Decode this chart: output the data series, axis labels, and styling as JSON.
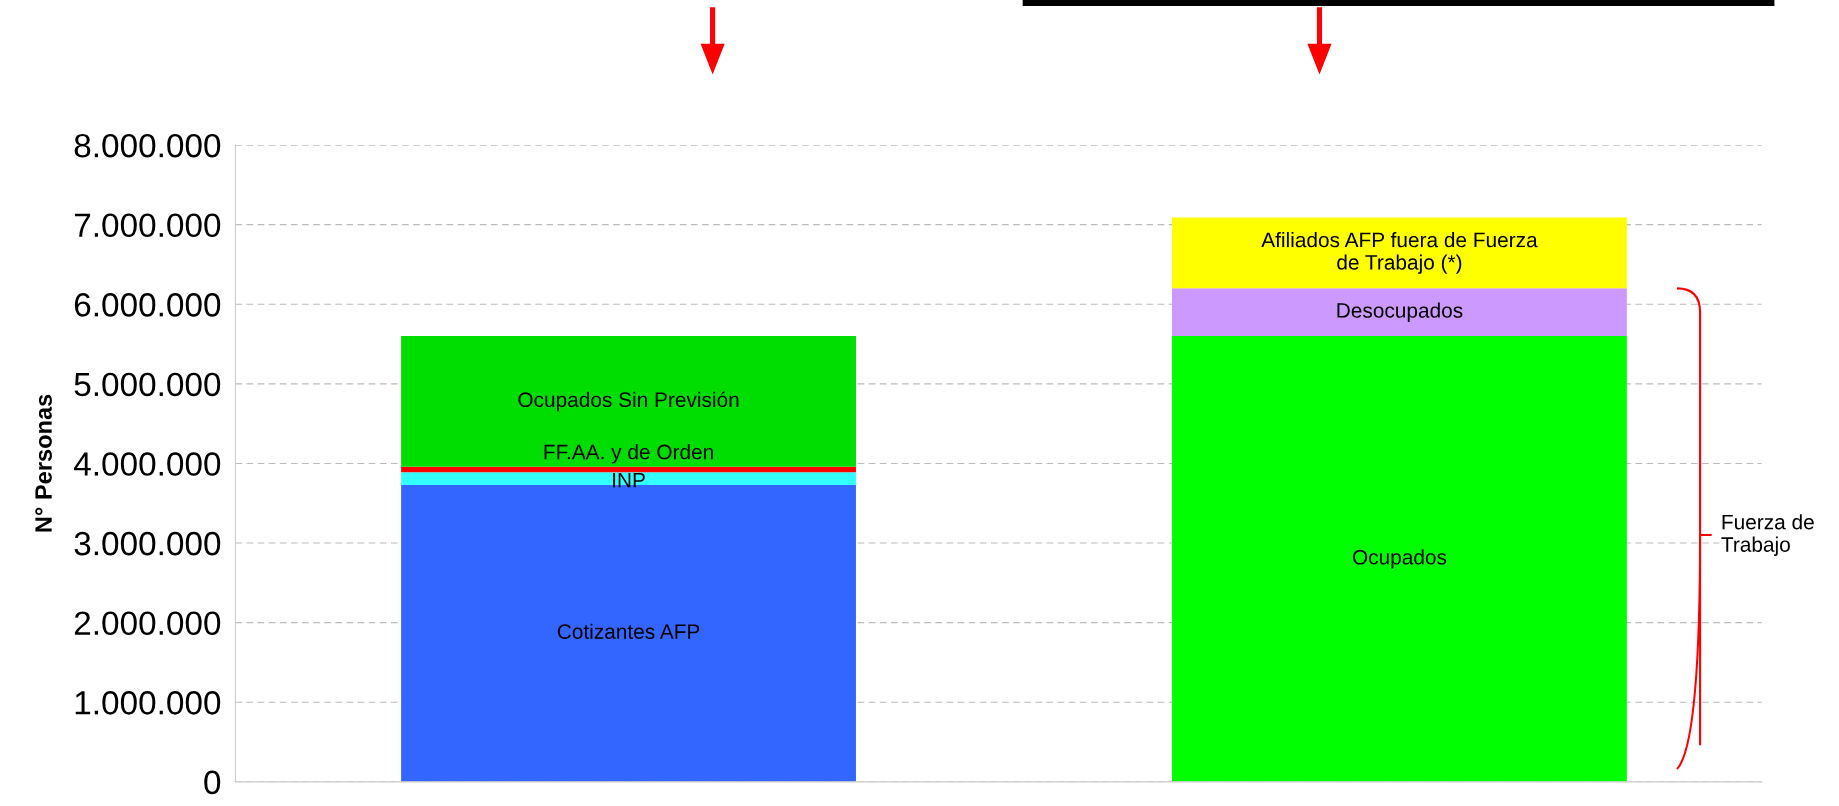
{
  "chart_data": {
    "type": "bar",
    "stacked": true,
    "ylabel": "N° Personas",
    "categories": [
      null,
      null
    ],
    "series": [
      {
        "name": "Cotizantes AFP",
        "color": "#3366ff",
        "values": [
          3730000,
          null
        ]
      },
      {
        "name": "INP",
        "color": "#33ffff",
        "values": [
          160000,
          null
        ]
      },
      {
        "name": "FF.AA. y de Orden",
        "color": "#ff0000",
        "values": [
          70000,
          null
        ]
      },
      {
        "name": "Ocupados Sin Previsión",
        "color": "#00dd00",
        "values": [
          1640000,
          null
        ]
      },
      {
        "name": "Ocupados",
        "color": "#00ff00",
        "values": [
          null,
          5600000
        ]
      },
      {
        "name": "Desocupados",
        "color": "#cc99ff",
        "values": [
          null,
          600000
        ]
      },
      {
        "name": "Afiliados AFP fuera de Fuerza\nde Trabajo (*)",
        "color": "#ffff00",
        "values": [
          null,
          890000
        ]
      }
    ],
    "ylim": [
      0,
      8000000
    ],
    "yticks": [
      0,
      {
        "value": 1000000,
        "label": "1.000.000"
      },
      {
        "value": 2000000,
        "label": "2.000.000"
      },
      {
        "value": 3000000,
        "label": "3.000.000"
      },
      {
        "value": 4000000,
        "label": "4.000.000"
      },
      {
        "value": 5000000,
        "label": "5.000.000"
      },
      {
        "value": 6000000,
        "label": "6.000.000"
      },
      {
        "value": 7000000,
        "label": "7.000.000"
      },
      {
        "value": 8000000,
        "label": "8.000.000"
      }
    ],
    "grid": "y",
    "legend": false,
    "annotations": [
      "Fuerza de\nTrabajo"
    ]
  }
}
